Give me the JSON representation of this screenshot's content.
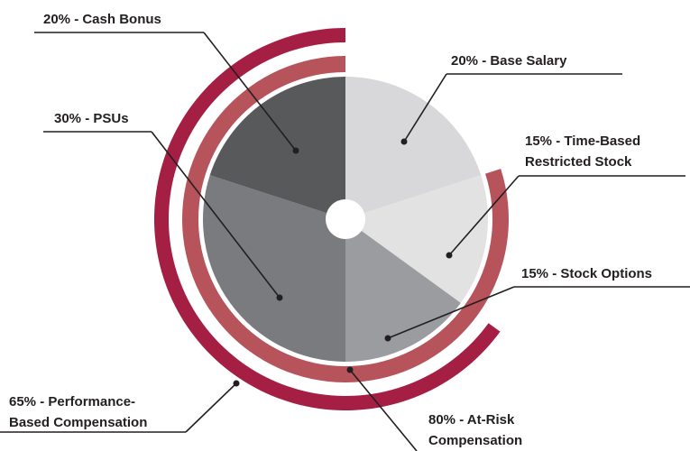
{
  "chart_data": {
    "type": "pie",
    "values": [
      20,
      15,
      15,
      30,
      20
    ],
    "value_labels": [
      [
        "20% - Base Salary"
      ],
      [
        "15% - Time-Based",
        "Restricted Stock"
      ],
      [
        "15% - Stock Options"
      ],
      [
        "30% - PSUs"
      ],
      [
        "20% - Cash Bonus"
      ]
    ],
    "colors": [
      "#d8d8da",
      "#e2e2e3",
      "#9b9c9f",
      "#7a7b7e",
      "#58595b"
    ],
    "rings": [
      {
        "value": 80,
        "value_label": [
          "80% - At-Risk",
          "Compensation"
        ],
        "color": "#b6535b"
      },
      {
        "value": 65,
        "value_label": [
          "65% - Performance-",
          "Based Compensation"
        ],
        "color": "#a51f45"
      }
    ]
  }
}
